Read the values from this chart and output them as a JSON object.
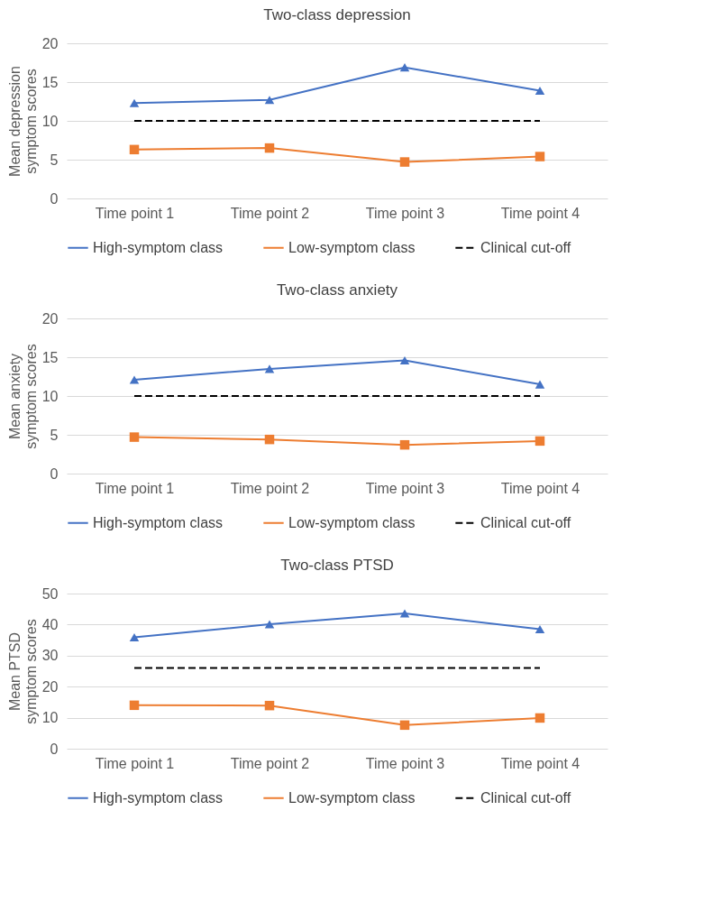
{
  "chart_data": [
    {
      "type": "line",
      "title": "Two-class depression",
      "ylabel": "Mean depression symptom scores",
      "categories": [
        "Time point 1",
        "Time point 2",
        "Time point 3",
        "Time point 4"
      ],
      "ylim": [
        0,
        20
      ],
      "yticks": [
        0,
        5,
        10,
        15,
        20
      ],
      "grid": "y",
      "legend": "bottom",
      "series": [
        {
          "name": "High-symptom class",
          "color": "#4472c4",
          "marker": "triangle",
          "values": [
            12.3,
            12.7,
            16.9,
            13.9
          ]
        },
        {
          "name": "Low-symptom class",
          "color": "#ed7d31",
          "marker": "square",
          "values": [
            6.3,
            6.5,
            4.7,
            5.4
          ]
        },
        {
          "name": "Clinical cut-off",
          "color": "#000000",
          "line_style": "dashed",
          "values": [
            10,
            10,
            10,
            10
          ]
        }
      ]
    },
    {
      "type": "line",
      "title": "Two-class anxiety",
      "ylabel": "Mean anxiety symptom scores",
      "categories": [
        "Time point 1",
        "Time point 2",
        "Time point 3",
        "Time point 4"
      ],
      "ylim": [
        0,
        20
      ],
      "yticks": [
        0,
        5,
        10,
        15,
        20
      ],
      "grid": "y",
      "legend": "bottom",
      "series": [
        {
          "name": "High-symptom class",
          "color": "#4472c4",
          "marker": "triangle",
          "values": [
            12.1,
            13.5,
            14.6,
            11.5
          ]
        },
        {
          "name": "Low-symptom class",
          "color": "#ed7d31",
          "marker": "square",
          "values": [
            4.7,
            4.4,
            3.7,
            4.2
          ]
        },
        {
          "name": "Clinical cut-off",
          "color": "#000000",
          "line_style": "dashed",
          "values": [
            10,
            10,
            10,
            10
          ]
        }
      ]
    },
    {
      "type": "line",
      "title": "Two-class PTSD",
      "ylabel": "Mean PTSD symptom scores",
      "categories": [
        "Time point 1",
        "Time point 2",
        "Time point 3",
        "Time point 4"
      ],
      "ylim": [
        0,
        50
      ],
      "yticks": [
        0,
        10,
        20,
        30,
        40,
        50
      ],
      "grid": "y",
      "legend": "bottom",
      "series": [
        {
          "name": "High-symptom class",
          "color": "#4472c4",
          "marker": "triangle",
          "values": [
            35.9,
            40.1,
            43.6,
            38.5
          ]
        },
        {
          "name": "Low-symptom class",
          "color": "#ed7d31",
          "marker": "square",
          "values": [
            14.0,
            13.9,
            7.6,
            9.9
          ]
        },
        {
          "name": "Clinical cut-off",
          "color": "#000000",
          "line_style": "dashed",
          "values": [
            26,
            26,
            26,
            26
          ]
        }
      ]
    }
  ]
}
